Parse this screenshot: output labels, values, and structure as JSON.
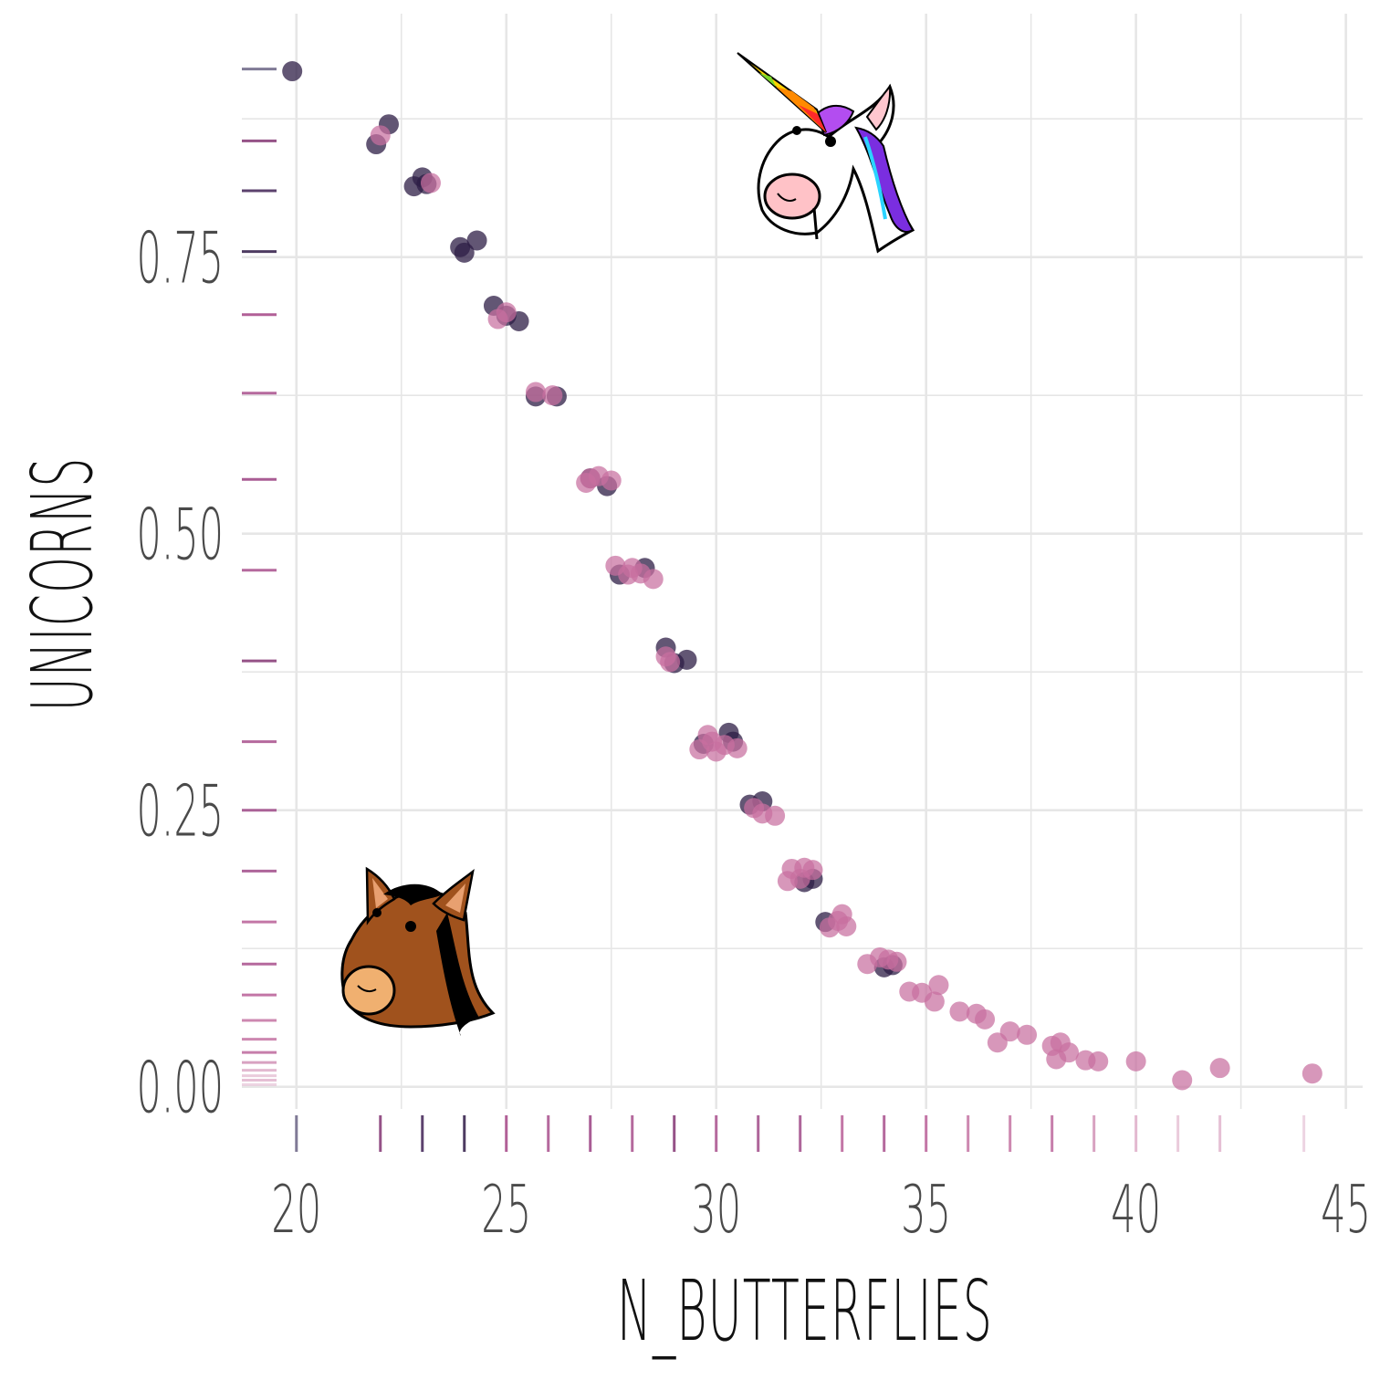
{
  "chart_data": {
    "type": "scatter",
    "xlabel": "N_BUTTERFLIES",
    "ylabel": "UNICORNS",
    "xlim": [
      18.7,
      45.4
    ],
    "ylim": [
      -0.02,
      0.97
    ],
    "x_ticks": [
      {
        "value": 20,
        "label": "20"
      },
      {
        "value": 25,
        "label": "25"
      },
      {
        "value": 30,
        "label": "30"
      },
      {
        "value": 35,
        "label": "35"
      },
      {
        "value": 40,
        "label": "40"
      },
      {
        "value": 45,
        "label": "45"
      }
    ],
    "y_ticks": [
      {
        "value": 0.0,
        "label": "0.00"
      },
      {
        "value": 0.25,
        "label": "0.25"
      },
      {
        "value": 0.5,
        "label": "0.50"
      },
      {
        "value": 0.75,
        "label": "0.75"
      }
    ],
    "grid": true,
    "colors": {
      "dark": "#2e1e45",
      "pink": "#c86f9f"
    },
    "rug_x": [
      {
        "x": 20,
        "c": "#6a6384",
        "o": 0.85
      },
      {
        "x": 22,
        "c": "#8a3f7a",
        "o": 0.9
      },
      {
        "x": 23,
        "c": "#4a2e5e",
        "o": 0.9
      },
      {
        "x": 24,
        "c": "#3a2650",
        "o": 0.9
      },
      {
        "x": 25,
        "c": "#a84f8c",
        "o": 0.9
      },
      {
        "x": 26,
        "c": "#a84f8c",
        "o": 0.85
      },
      {
        "x": 27,
        "c": "#a04a88",
        "o": 0.9
      },
      {
        "x": 28,
        "c": "#a84f8c",
        "o": 0.85
      },
      {
        "x": 29,
        "c": "#8a3f7a",
        "o": 0.9
      },
      {
        "x": 30,
        "c": "#a84f8c",
        "o": 0.85
      },
      {
        "x": 31,
        "c": "#a04a88",
        "o": 0.85
      },
      {
        "x": 32,
        "c": "#a04a88",
        "o": 0.85
      },
      {
        "x": 33,
        "c": "#b85e96",
        "o": 0.85
      },
      {
        "x": 34,
        "c": "#a84f8c",
        "o": 0.85
      },
      {
        "x": 35,
        "c": "#b85e96",
        "o": 0.85
      },
      {
        "x": 36,
        "c": "#c06a9c",
        "o": 0.8
      },
      {
        "x": 37,
        "c": "#c06a9c",
        "o": 0.8
      },
      {
        "x": 38,
        "c": "#b85e96",
        "o": 0.8
      },
      {
        "x": 39,
        "c": "#c87aa6",
        "o": 0.7
      },
      {
        "x": 40,
        "c": "#d08bb0",
        "o": 0.6
      },
      {
        "x": 41,
        "c": "#d8a0be",
        "o": 0.55
      },
      {
        "x": 42,
        "c": "#d08bb0",
        "o": 0.55
      },
      {
        "x": 44,
        "c": "#dcaac6",
        "o": 0.5
      }
    ],
    "rug_y": [
      {
        "y": 0.92,
        "c": "#6a6384",
        "o": 0.85
      },
      {
        "y": 0.855,
        "c": "#8a3f7a",
        "o": 0.9
      },
      {
        "y": 0.81,
        "c": "#4a2e5e",
        "o": 0.9
      },
      {
        "y": 0.755,
        "c": "#3a2650",
        "o": 0.9
      },
      {
        "y": 0.698,
        "c": "#a84f8c",
        "o": 0.9
      },
      {
        "y": 0.627,
        "c": "#a84f8c",
        "o": 0.85
      },
      {
        "y": 0.549,
        "c": "#a04a88",
        "o": 0.9
      },
      {
        "y": 0.467,
        "c": "#a84f8c",
        "o": 0.85
      },
      {
        "y": 0.385,
        "c": "#8a3f7a",
        "o": 0.9
      },
      {
        "y": 0.312,
        "c": "#a84f8c",
        "o": 0.85
      },
      {
        "y": 0.25,
        "c": "#a04a88",
        "o": 0.85
      },
      {
        "y": 0.195,
        "c": "#a04a88",
        "o": 0.85
      },
      {
        "y": 0.149,
        "c": "#b85e96",
        "o": 0.85
      },
      {
        "y": 0.111,
        "c": "#a84f8c",
        "o": 0.85
      },
      {
        "y": 0.083,
        "c": "#b85e96",
        "o": 0.85
      },
      {
        "y": 0.06,
        "c": "#c06a9c",
        "o": 0.8
      },
      {
        "y": 0.043,
        "c": "#c06a9c",
        "o": 0.8
      },
      {
        "y": 0.031,
        "c": "#b85e96",
        "o": 0.8
      },
      {
        "y": 0.022,
        "c": "#c87aa6",
        "o": 0.7
      },
      {
        "y": 0.015,
        "c": "#d08bb0",
        "o": 0.6
      },
      {
        "y": 0.01,
        "c": "#d8a0be",
        "o": 0.55
      },
      {
        "y": 0.006,
        "c": "#d08bb0",
        "o": 0.55
      },
      {
        "y": 0.002,
        "c": "#dcaac6",
        "o": 0.5
      }
    ],
    "series": [
      {
        "group": "dark",
        "points": [
          [
            19.9,
            0.918
          ],
          [
            21.9,
            0.852
          ],
          [
            22.2,
            0.87
          ],
          [
            22.8,
            0.814
          ],
          [
            23.0,
            0.822
          ],
          [
            23.1,
            0.816
          ],
          [
            23.9,
            0.759
          ],
          [
            24.0,
            0.754
          ],
          [
            24.3,
            0.765
          ],
          [
            24.7,
            0.706
          ],
          [
            25.0,
            0.697
          ],
          [
            25.3,
            0.692
          ],
          [
            25.7,
            0.624
          ],
          [
            26.2,
            0.624
          ],
          [
            27.0,
            0.55
          ],
          [
            27.4,
            0.543
          ],
          [
            27.7,
            0.463
          ],
          [
            28.3,
            0.469
          ],
          [
            28.8,
            0.397
          ],
          [
            29.0,
            0.383
          ],
          [
            29.3,
            0.386
          ],
          [
            29.7,
            0.31
          ],
          [
            30.3,
            0.32
          ],
          [
            30.4,
            0.312
          ],
          [
            30.8,
            0.255
          ],
          [
            31.1,
            0.258
          ],
          [
            32.1,
            0.185
          ],
          [
            32.3,
            0.188
          ],
          [
            32.6,
            0.149
          ],
          [
            34.2,
            0.11
          ],
          [
            34.0,
            0.108
          ]
        ]
      },
      {
        "group": "pink",
        "points": [
          [
            22.0,
            0.86
          ],
          [
            23.2,
            0.817
          ],
          [
            24.8,
            0.694
          ],
          [
            25.0,
            0.7
          ],
          [
            25.7,
            0.628
          ],
          [
            26.1,
            0.625
          ],
          [
            26.9,
            0.546
          ],
          [
            27.2,
            0.552
          ],
          [
            27.5,
            0.548
          ],
          [
            27.0,
            0.55
          ],
          [
            27.6,
            0.471
          ],
          [
            27.9,
            0.463
          ],
          [
            28.0,
            0.469
          ],
          [
            28.2,
            0.464
          ],
          [
            28.5,
            0.459
          ],
          [
            28.8,
            0.389
          ],
          [
            28.9,
            0.384
          ],
          [
            29.6,
            0.305
          ],
          [
            29.9,
            0.312
          ],
          [
            30.2,
            0.309
          ],
          [
            30.5,
            0.306
          ],
          [
            29.8,
            0.318
          ],
          [
            30.0,
            0.303
          ],
          [
            30.9,
            0.252
          ],
          [
            31.1,
            0.247
          ],
          [
            31.4,
            0.245
          ],
          [
            31.7,
            0.186
          ],
          [
            31.8,
            0.197
          ],
          [
            32.1,
            0.198
          ],
          [
            32.3,
            0.196
          ],
          [
            32.0,
            0.188
          ],
          [
            32.7,
            0.144
          ],
          [
            32.9,
            0.15
          ],
          [
            33.1,
            0.145
          ],
          [
            33.0,
            0.156
          ],
          [
            33.6,
            0.111
          ],
          [
            33.9,
            0.117
          ],
          [
            34.1,
            0.115
          ],
          [
            34.3,
            0.113
          ],
          [
            34.6,
            0.086
          ],
          [
            34.9,
            0.085
          ],
          [
            35.2,
            0.077
          ],
          [
            35.3,
            0.092
          ],
          [
            35.8,
            0.068
          ],
          [
            36.2,
            0.066
          ],
          [
            36.4,
            0.061
          ],
          [
            36.7,
            0.04
          ],
          [
            37.0,
            0.05
          ],
          [
            37.4,
            0.047
          ],
          [
            38.0,
            0.037
          ],
          [
            38.2,
            0.04
          ],
          [
            38.4,
            0.031
          ],
          [
            38.1,
            0.025
          ],
          [
            38.8,
            0.024
          ],
          [
            39.1,
            0.023
          ],
          [
            40.0,
            0.023
          ],
          [
            41.1,
            0.006
          ],
          [
            42.0,
            0.017
          ],
          [
            44.2,
            0.012
          ]
        ]
      }
    ]
  }
}
